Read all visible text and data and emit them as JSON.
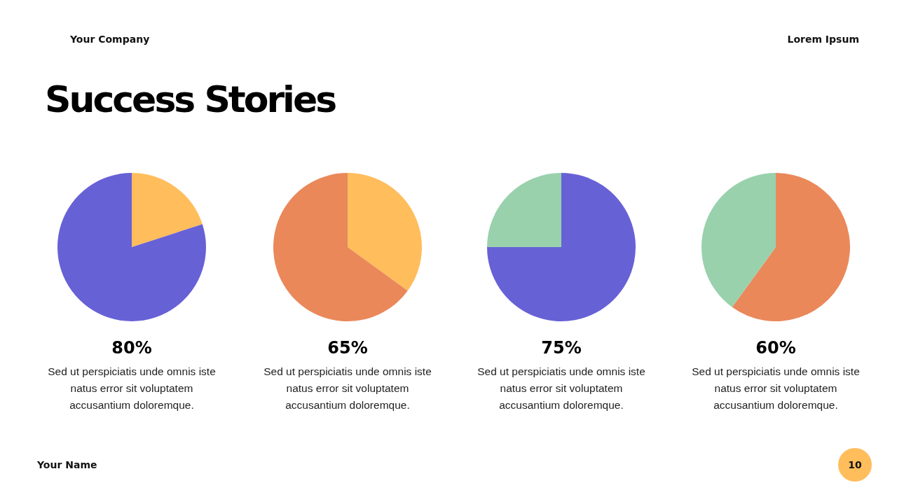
{
  "chart_data": [
    {
      "type": "other",
      "title": "Success Stories",
      "annotations": [
        "Your Company",
        "Lorem Ipsum",
        "Your Name",
        "10"
      ]
    },
    {
      "type": "pie",
      "title": "80%",
      "categories": [
        null,
        null
      ],
      "values": [
        20,
        80
      ],
      "colors": [
        "#ffbd5c",
        "#6761d6"
      ],
      "annotations": [
        "Sed ut perspiciatis unde omnis iste natus error sit voluptatem accusantium doloremque."
      ]
    },
    {
      "type": "pie",
      "title": "65%",
      "categories": [
        null,
        null
      ],
      "values": [
        35,
        65
      ],
      "colors": [
        "#ffbd5c",
        "#ea885a"
      ],
      "annotations": [
        "Sed ut perspiciatis unde omnis iste natus error sit voluptatem accusantium doloremque."
      ]
    },
    {
      "type": "pie",
      "title": "75%",
      "categories": [
        null,
        null
      ],
      "values": [
        75,
        25
      ],
      "colors": [
        "#6761d6",
        "#99d1ad"
      ],
      "annotations": [
        "Sed ut perspiciatis unde omnis iste natus error sit voluptatem accusantium doloremque."
      ]
    },
    {
      "type": "pie",
      "title": "60%",
      "categories": [
        null,
        null
      ],
      "values": [
        60,
        40
      ],
      "colors": [
        "#ea885a",
        "#99d1ad"
      ],
      "annotations": [
        "Sed ut perspiciatis unde omnis iste natus error sit voluptatem accusantium doloremque."
      ]
    }
  ]
}
